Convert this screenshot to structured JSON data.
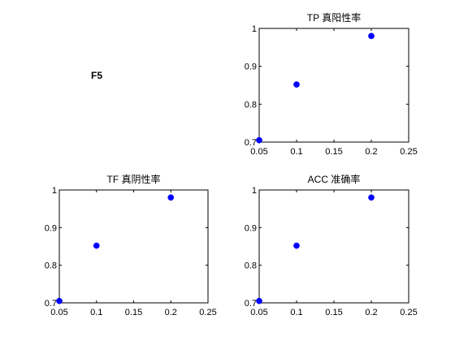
{
  "figure": {
    "label": "F5",
    "marker_color": "#0000ff"
  },
  "chart_data": [
    {
      "type": "scatter",
      "title": "TP 真阳性率",
      "xlabel": "",
      "ylabel": "",
      "xlim": [
        0.05,
        0.25
      ],
      "ylim": [
        0.7,
        1
      ],
      "xticks": [
        "0.05",
        "0.1",
        "0.15",
        "0.2",
        "0.25"
      ],
      "yticks": [
        "0.7",
        "0.8",
        "0.9",
        "1"
      ],
      "grid": false,
      "series": [
        {
          "x": [
            0.05,
            0.1,
            0.2
          ],
          "y": [
            0.705,
            0.852,
            0.98
          ]
        }
      ]
    },
    {
      "type": "scatter",
      "title": "TF 真阴性率",
      "xlabel": "",
      "ylabel": "",
      "xlim": [
        0.05,
        0.25
      ],
      "ylim": [
        0.7,
        1
      ],
      "xticks": [
        "0.05",
        "0.1",
        "0.15",
        "0.2",
        "0.25"
      ],
      "yticks": [
        "0.7",
        "0.8",
        "0.9",
        "1"
      ],
      "grid": false,
      "series": [
        {
          "x": [
            0.05,
            0.1,
            0.2
          ],
          "y": [
            0.705,
            0.852,
            0.98
          ]
        }
      ]
    },
    {
      "type": "scatter",
      "title": "ACC 准确率",
      "xlabel": "",
      "ylabel": "",
      "xlim": [
        0.05,
        0.25
      ],
      "ylim": [
        0.7,
        1
      ],
      "xticks": [
        "0.05",
        "0.1",
        "0.15",
        "0.2",
        "0.25"
      ],
      "yticks": [
        "0.7",
        "0.8",
        "0.9",
        "1"
      ],
      "grid": false,
      "series": [
        {
          "x": [
            0.05,
            0.1,
            0.2
          ],
          "y": [
            0.705,
            0.852,
            0.98
          ]
        }
      ]
    }
  ]
}
